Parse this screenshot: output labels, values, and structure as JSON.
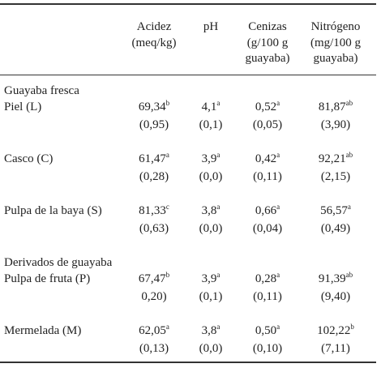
{
  "header": {
    "columns": [
      [
        "Acidez",
        "(meq/kg)"
      ],
      [
        "pH"
      ],
      [
        "Cenizas",
        "(g/100 g",
        "guayaba)"
      ],
      [
        "Nitrógeno",
        "(mg/100 g",
        "guayaba)"
      ]
    ]
  },
  "table": {
    "groups": [
      {
        "title": "Guayaba fresca",
        "rows": [
          {
            "label": "Piel (L)",
            "cells": [
              {
                "value": "69,34",
                "sup": "b",
                "sd": "(0,95)"
              },
              {
                "value": "4,1",
                "sup": "a",
                "sd": "(0,1)"
              },
              {
                "value": "0,52",
                "sup": "a",
                "sd": "(0,05)"
              },
              {
                "value": "81,87",
                "sup": "ab",
                "sd": "(3,90)"
              }
            ]
          },
          {
            "label": "Casco (C)",
            "cells": [
              {
                "value": "61,47",
                "sup": "a",
                "sd": "(0,28)"
              },
              {
                "value": "3,9",
                "sup": "a",
                "sd": "(0,0)"
              },
              {
                "value": "0,42",
                "sup": "a",
                "sd": "(0,11)"
              },
              {
                "value": "92,21",
                "sup": "ab",
                "sd": "(2,15)"
              }
            ]
          },
          {
            "label": "Pulpa de la baya (S)",
            "cells": [
              {
                "value": "81,33",
                "sup": "c",
                "sd": "(0,63)"
              },
              {
                "value": "3,8",
                "sup": "a",
                "sd": "(0,0)"
              },
              {
                "value": "0,66",
                "sup": "a",
                "sd": "(0,04)"
              },
              {
                "value": "56,57",
                "sup": "a",
                "sd": "(0,49)"
              }
            ]
          }
        ]
      },
      {
        "title": "Derivados de guayaba",
        "rows": [
          {
            "label": "Pulpa de fruta (P)",
            "cells": [
              {
                "value": "67,47",
                "sup": "b",
                "sd": "0,20)"
              },
              {
                "value": "3,9",
                "sup": "a",
                "sd": "(0,1)"
              },
              {
                "value": "0,28",
                "sup": "a",
                "sd": "(0,11)"
              },
              {
                "value": "91,39",
                "sup": "ab",
                "sd": "(9,40)"
              }
            ]
          },
          {
            "label": "Mermelada (M)",
            "cells": [
              {
                "value": "62,05",
                "sup": "a",
                "sd": "(0,13)"
              },
              {
                "value": "3,8",
                "sup": "a",
                "sd": "(0,0)"
              },
              {
                "value": "0,50",
                "sup": "a",
                "sd": "(0,10)"
              },
              {
                "value": "102,22",
                "sup": "b",
                "sd": "(7,11)"
              }
            ]
          }
        ]
      }
    ]
  }
}
